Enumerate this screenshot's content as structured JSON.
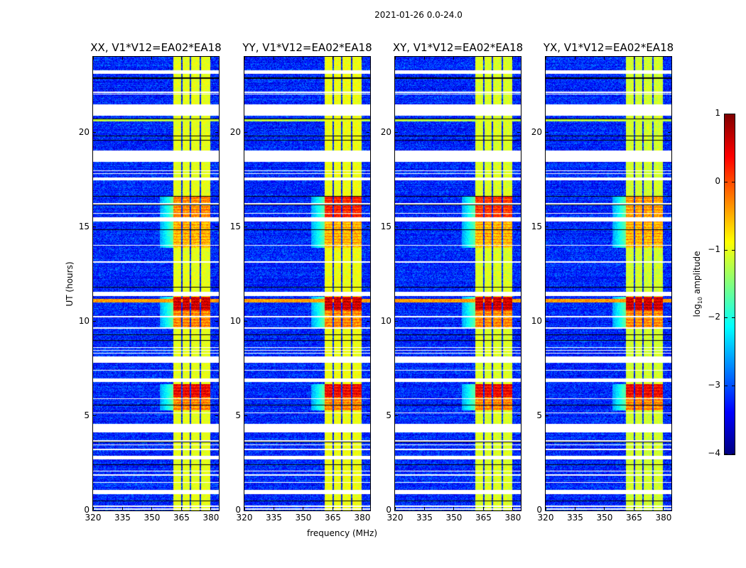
{
  "figure": {
    "suptitle": "2021-01-26 0.0-24.0",
    "xlabel": "frequency (MHz)",
    "ylabel": "UT (hours)",
    "colorbar": {
      "label_prefix": "log",
      "label_sub": "10",
      "label_suffix": " amplitude",
      "range": [
        -4,
        1
      ],
      "ticks": [
        "1",
        "0",
        "−1",
        "−2",
        "−3",
        "−4"
      ],
      "tick_values": [
        1,
        0,
        -1,
        -2,
        -3,
        -4
      ],
      "colormap": "jet"
    }
  },
  "chart_data": {
    "type": "heatmap",
    "title": "2021-01-26 0.0-24.0",
    "xlabel": "frequency (MHz)",
    "ylabel": "UT (hours)",
    "xlim": [
      320,
      384
    ],
    "ylim": [
      0,
      24
    ],
    "xticks": [
      320,
      335,
      350,
      365,
      380
    ],
    "xtick_labels": [
      "320",
      "335",
      "350",
      "365",
      "380"
    ],
    "yticks": [
      0,
      5,
      10,
      15,
      20
    ],
    "ytick_labels": [
      "0",
      "5",
      "10",
      "15",
      "20"
    ],
    "value_label": "log10 amplitude",
    "value_range": [
      -4,
      1
    ],
    "panels": [
      {
        "title": "XX, V1*V12=EA02*EA18",
        "band_boost": 0.0,
        "event16": -0.3
      },
      {
        "title": "YY, V1*V12=EA02*EA18",
        "band_boost": 0.05,
        "event16": 0.2
      },
      {
        "title": "XY, V1*V12=EA02*EA18",
        "band_boost": -0.05,
        "event16": 0.1
      },
      {
        "title": "YX, V1*V12=EA02*EA18",
        "band_boost": -0.1,
        "event16": -0.4
      }
    ],
    "background_log_amplitude": -3.2,
    "rfi_channels_mhz": [
      [
        361,
        364.8
      ],
      [
        365.5,
        369.3
      ],
      [
        370,
        374.3
      ],
      [
        375,
        379.6
      ]
    ],
    "rfi_log_amplitude": -1.0,
    "events": [
      {
        "hours": [
          10.6,
          11.3
        ],
        "log_amplitude": 0.6
      },
      {
        "hours": [
          9.6,
          10.6
        ],
        "log_amplitude": -0.3
      },
      {
        "hours": [
          6.0,
          6.7
        ],
        "log_amplitude": 0.4
      },
      {
        "hours": [
          5.3,
          6.0
        ],
        "log_amplitude": -0.3
      },
      {
        "hours": [
          13.9,
          15.3
        ],
        "log_amplitude": -0.5
      },
      {
        "hours": [
          15.5,
          16.6
        ],
        "log_amplitude": -0.3
      }
    ],
    "broadband_events": [
      {
        "hours": [
          11.0,
          11.2
        ],
        "log_amplitude": -0.4
      },
      {
        "hours": [
          20.6,
          20.75
        ],
        "log_amplitude": -1.2
      }
    ],
    "flagged_hours": [
      [
        23.1,
        23.3
      ],
      [
        22.0,
        22.05
      ],
      [
        22.1,
        22.15
      ],
      [
        20.9,
        21.5
      ],
      [
        18.45,
        19.05
      ],
      [
        17.8,
        17.85
      ],
      [
        17.95,
        18.0
      ],
      [
        17.45,
        17.6
      ],
      [
        16.2,
        16.25
      ],
      [
        15.7,
        15.75
      ],
      [
        15.3,
        15.5
      ],
      [
        14.0,
        14.05
      ],
      [
        13.1,
        13.2
      ],
      [
        11.35,
        11.55
      ],
      [
        10.2,
        10.3
      ],
      [
        9.63,
        9.68
      ],
      [
        8.6,
        8.65
      ],
      [
        8.45,
        8.5
      ],
      [
        8.3,
        8.35
      ],
      [
        7.8,
        8.15
      ],
      [
        7.4,
        7.45
      ],
      [
        6.8,
        7.0
      ],
      [
        5.9,
        5.95
      ],
      [
        5.15,
        5.2
      ],
      [
        4.15,
        4.6
      ],
      [
        3.65,
        3.7
      ],
      [
        3.45,
        3.5
      ],
      [
        3.2,
        3.25
      ],
      [
        2.7,
        2.9
      ],
      [
        2.05,
        2.1
      ],
      [
        1.85,
        1.9
      ],
      [
        1.45,
        1.5
      ],
      [
        0.85,
        1.1
      ],
      [
        0.2,
        0.25
      ],
      [
        0.05,
        0.1
      ]
    ],
    "blank_hours": [
      [
        22.85,
        22.9
      ],
      [
        20.7,
        20.72
      ],
      [
        21.2,
        21.25
      ],
      [
        19.8,
        19.83
      ],
      [
        19.58,
        19.61
      ],
      [
        18.35,
        18.38
      ],
      [
        16.6,
        16.63
      ],
      [
        16.15,
        16.18
      ],
      [
        15.8,
        15.83
      ],
      [
        15.7,
        15.72
      ],
      [
        15.2,
        15.23
      ],
      [
        14.83,
        14.86
      ],
      [
        11.8,
        11.83
      ],
      [
        10.2,
        10.22
      ],
      [
        9.28,
        9.31
      ],
      [
        8.98,
        9.01
      ],
      [
        7.5,
        7.53
      ],
      [
        5.55,
        5.58
      ],
      [
        3.85,
        3.88
      ],
      [
        3.6,
        3.63
      ],
      [
        3.1,
        3.13
      ],
      [
        2.4,
        2.43
      ],
      [
        0.5,
        0.53
      ]
    ]
  }
}
